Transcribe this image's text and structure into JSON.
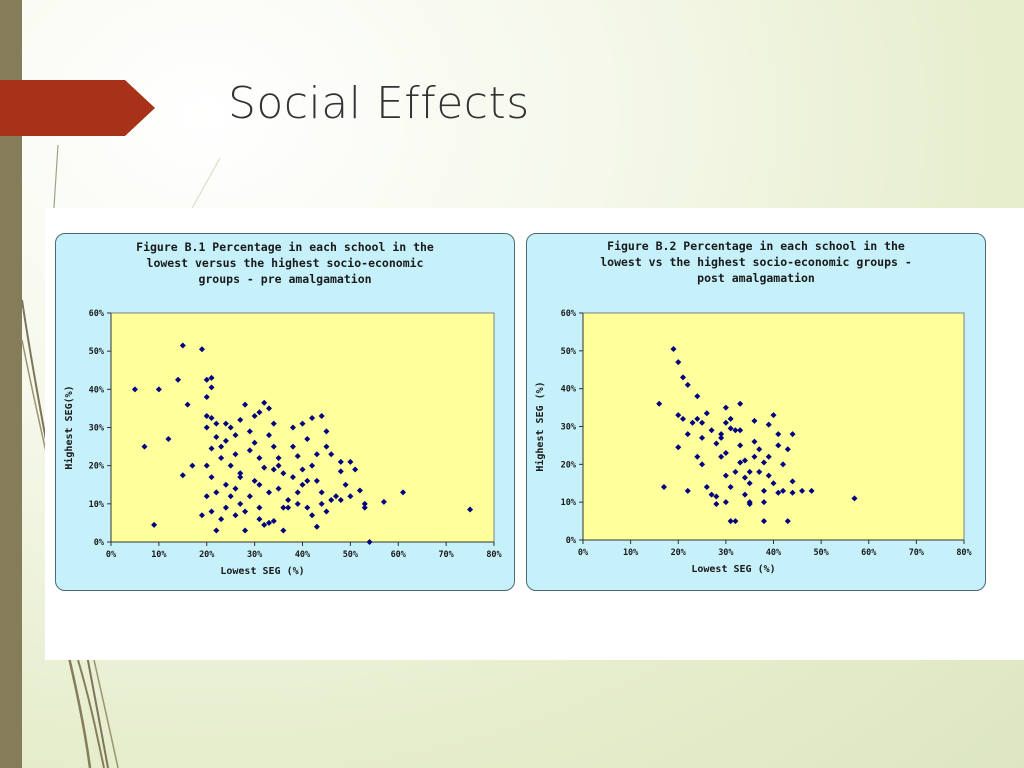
{
  "slide": {
    "title": "Social Effects"
  },
  "colors": {
    "accent_chevron": "#a8311a",
    "left_bar": "#857c5a",
    "panel_bg": "#c6f1fb",
    "plot_bg": "#ffff9c",
    "marker": "#000080"
  },
  "chart_data": [
    {
      "type": "scatter",
      "title_lines": [
        "Figure B.1 Percentage in each school in the",
        "lowest versus the highest socio-economic",
        "groups - pre amalgamation"
      ],
      "xlabel": "Lowest SEG (%)",
      "ylabel": "Highest SEG(%)",
      "xlim": [
        0,
        80
      ],
      "ylim": [
        0,
        60
      ],
      "xticks": [
        "0%",
        "10%",
        "20%",
        "30%",
        "40%",
        "50%",
        "60%",
        "70%",
        "80%"
      ],
      "yticks": [
        "0%",
        "10%",
        "20%",
        "30%",
        "40%",
        "50%",
        "60%"
      ],
      "grid": false,
      "points": [
        [
          5,
          40
        ],
        [
          7,
          25
        ],
        [
          9,
          4.5
        ],
        [
          10,
          40
        ],
        [
          12,
          27
        ],
        [
          14,
          42.5
        ],
        [
          15,
          51.5
        ],
        [
          16,
          36
        ],
        [
          15,
          17.5
        ],
        [
          17,
          20
        ],
        [
          19,
          50.5
        ],
        [
          20,
          42.5
        ],
        [
          21,
          43
        ],
        [
          21,
          40.5
        ],
        [
          20,
          38
        ],
        [
          20,
          33
        ],
        [
          21,
          32.5
        ],
        [
          20,
          30
        ],
        [
          22,
          31
        ],
        [
          22,
          27.5
        ],
        [
          21,
          24.5
        ],
        [
          23,
          25
        ],
        [
          20,
          20
        ],
        [
          23,
          22
        ],
        [
          21,
          17
        ],
        [
          20,
          12
        ],
        [
          22,
          13
        ],
        [
          19,
          7
        ],
        [
          21,
          8
        ],
        [
          23,
          6
        ],
        [
          22,
          3
        ],
        [
          24,
          9
        ],
        [
          24,
          31
        ],
        [
          25,
          30
        ],
        [
          24,
          26.5
        ],
        [
          26,
          28
        ],
        [
          25,
          20
        ],
        [
          26,
          23
        ],
        [
          27,
          17
        ],
        [
          26,
          14
        ],
        [
          25,
          12
        ],
        [
          27,
          10
        ],
        [
          28,
          8
        ],
        [
          28,
          36
        ],
        [
          27,
          32
        ],
        [
          29,
          29
        ],
        [
          30,
          33
        ],
        [
          30,
          26
        ],
        [
          31,
          22
        ],
        [
          32,
          19.5
        ],
        [
          30,
          16
        ],
        [
          29,
          12
        ],
        [
          31,
          9
        ],
        [
          31,
          6
        ],
        [
          32,
          4.5
        ],
        [
          33,
          5
        ],
        [
          34,
          5.5
        ],
        [
          31,
          34
        ],
        [
          32,
          36.5
        ],
        [
          33,
          35
        ],
        [
          34,
          31
        ],
        [
          33,
          28
        ],
        [
          34,
          25
        ],
        [
          35,
          22
        ],
        [
          34,
          19
        ],
        [
          36,
          18
        ],
        [
          35,
          14
        ],
        [
          37,
          11
        ],
        [
          37,
          9
        ],
        [
          36,
          3
        ],
        [
          38,
          30
        ],
        [
          38,
          25
        ],
        [
          39,
          22.5
        ],
        [
          40,
          19
        ],
        [
          40,
          15
        ],
        [
          39,
          13
        ],
        [
          41,
          9
        ],
        [
          42,
          7
        ],
        [
          40,
          31
        ],
        [
          42,
          32.5
        ],
        [
          41,
          27
        ],
        [
          43,
          23
        ],
        [
          42,
          20
        ],
        [
          43,
          16
        ],
        [
          44,
          13
        ],
        [
          44,
          33
        ],
        [
          45,
          29
        ],
        [
          45,
          25
        ],
        [
          46,
          23
        ],
        [
          44,
          10
        ],
        [
          46,
          11
        ],
        [
          47,
          12
        ],
        [
          45,
          8
        ],
        [
          43,
          4
        ],
        [
          48,
          21
        ],
        [
          48,
          18.5
        ],
        [
          49,
          15
        ],
        [
          48,
          11
        ],
        [
          50,
          21
        ],
        [
          51,
          19
        ],
        [
          50,
          12
        ],
        [
          52,
          13.5
        ],
        [
          53,
          10
        ],
        [
          53,
          9
        ],
        [
          54,
          0
        ],
        [
          57,
          10.5
        ],
        [
          61,
          13
        ],
        [
          75,
          8.5
        ],
        [
          36,
          9
        ],
        [
          35,
          20
        ],
        [
          41,
          16
        ],
        [
          28,
          3
        ],
        [
          26,
          7
        ],
        [
          31,
          15
        ],
        [
          38,
          17
        ],
        [
          29,
          24
        ],
        [
          33,
          13
        ],
        [
          39,
          10
        ],
        [
          24,
          15
        ],
        [
          27,
          18
        ]
      ]
    },
    {
      "type": "scatter",
      "title_lines": [
        "Figure B.2 Percentage in each school in the",
        "lowest vs the highest socio-economic groups -",
        "post amalgamation"
      ],
      "xlabel": "Lowest SEG (%)",
      "ylabel": "Highest SEG (%)",
      "xlim": [
        0,
        80
      ],
      "ylim": [
        0,
        60
      ],
      "xticks": [
        "0%",
        "10%",
        "20%",
        "30%",
        "40%",
        "50%",
        "60%",
        "70%",
        "80%"
      ],
      "yticks": [
        "0%",
        "10%",
        "20%",
        "30%",
        "40%",
        "50%",
        "60%"
      ],
      "grid": false,
      "points": [
        [
          16,
          36
        ],
        [
          17,
          14
        ],
        [
          19,
          50.5
        ],
        [
          20,
          47
        ],
        [
          21,
          43
        ],
        [
          22,
          41
        ],
        [
          20,
          33
        ],
        [
          21,
          32
        ],
        [
          20,
          24.5
        ],
        [
          22,
          28
        ],
        [
          23,
          31
        ],
        [
          22,
          13
        ],
        [
          24,
          32
        ],
        [
          25,
          31
        ],
        [
          24,
          38
        ],
        [
          25,
          27
        ],
        [
          25,
          20
        ],
        [
          26,
          33.5
        ],
        [
          27,
          29
        ],
        [
          26,
          14
        ],
        [
          27,
          12
        ],
        [
          28,
          11.5
        ],
        [
          28,
          9.5
        ],
        [
          28,
          25.5
        ],
        [
          29,
          28
        ],
        [
          29,
          27
        ],
        [
          30,
          35
        ],
        [
          30,
          31
        ],
        [
          31,
          32
        ],
        [
          31,
          29.5
        ],
        [
          30,
          23
        ],
        [
          30,
          17
        ],
        [
          31,
          14
        ],
        [
          31,
          5
        ],
        [
          32,
          5
        ],
        [
          33,
          36
        ],
        [
          32,
          29
        ],
        [
          33,
          25
        ],
        [
          33,
          20.5
        ],
        [
          32,
          18
        ],
        [
          34,
          21
        ],
        [
          34,
          16.5
        ],
        [
          35,
          15
        ],
        [
          34,
          12
        ],
        [
          35,
          9.5
        ],
        [
          36,
          31.5
        ],
        [
          36,
          26
        ],
        [
          36,
          22
        ],
        [
          37,
          24
        ],
        [
          37,
          18
        ],
        [
          38,
          20.5
        ],
        [
          38,
          13
        ],
        [
          38,
          10
        ],
        [
          39,
          30.5
        ],
        [
          39,
          22
        ],
        [
          39,
          17
        ],
        [
          40,
          15
        ],
        [
          40,
          33
        ],
        [
          41,
          28
        ],
        [
          41,
          25
        ],
        [
          41,
          12.5
        ],
        [
          42,
          20
        ],
        [
          42,
          13
        ],
        [
          43,
          5
        ],
        [
          44,
          28
        ],
        [
          44,
          15.5
        ],
        [
          44,
          12.5
        ],
        [
          46,
          13
        ],
        [
          48,
          13
        ],
        [
          57,
          11
        ],
        [
          35,
          10
        ],
        [
          38,
          5
        ],
        [
          30,
          10
        ],
        [
          35,
          18
        ],
        [
          43,
          24
        ],
        [
          33,
          29
        ],
        [
          29,
          22
        ],
        [
          24,
          22
        ]
      ]
    }
  ]
}
